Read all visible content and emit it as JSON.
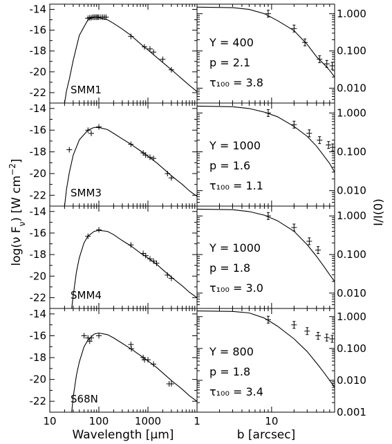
{
  "figure": {
    "ylabel_left": "log(ν F_ν) [W cm⁻²]",
    "ylabel_right": "I/I(0)",
    "xlabel_left": "Wavelength [μm]",
    "xlabel_right": "b [arcsec]"
  },
  "chart_data": [
    {
      "type": "scatter",
      "source": "SMM1",
      "name": "SMM1",
      "xlabel": "Wavelength [μm]",
      "ylabel": "log(ν F_ν) [W cm⁻²]",
      "x_scale": "log",
      "xlim": [
        10,
        10000
      ],
      "ylim": [
        -23,
        -13.5
      ],
      "x_tick_labels": [
        "10",
        "100",
        "1000"
      ],
      "y_tick_labels": [
        "-14",
        "-16",
        "-18",
        "-20",
        "-22"
      ],
      "points": [
        [
          60,
          -14.85
        ],
        [
          65,
          -14.8
        ],
        [
          70,
          -14.8
        ],
        [
          75,
          -14.75
        ],
        [
          80,
          -14.75
        ],
        [
          85,
          -14.75
        ],
        [
          90,
          -14.75
        ],
        [
          95,
          -14.75
        ],
        [
          100,
          -14.75
        ],
        [
          110,
          -14.75
        ],
        [
          120,
          -14.75
        ],
        [
          130,
          -14.75
        ],
        [
          140,
          -14.75
        ],
        [
          450,
          -16.6
        ],
        [
          850,
          -17.6
        ],
        [
          1100,
          -17.8
        ],
        [
          1300,
          -18.1
        ],
        [
          2000,
          -18.8
        ],
        [
          3000,
          -19.8
        ]
      ],
      "model": [
        [
          20,
          -23
        ],
        [
          22,
          -21.8
        ],
        [
          25,
          -20.7
        ],
        [
          30,
          -18.9
        ],
        [
          40,
          -16.5
        ],
        [
          60,
          -15.0
        ],
        [
          80,
          -14.75
        ],
        [
          100,
          -14.8
        ],
        [
          150,
          -15.0
        ],
        [
          200,
          -15.35
        ],
        [
          300,
          -15.9
        ],
        [
          450,
          -16.5
        ],
        [
          700,
          -17.3
        ],
        [
          1000,
          -17.9
        ],
        [
          1500,
          -18.6
        ],
        [
          2000,
          -19.1
        ],
        [
          3000,
          -19.8
        ],
        [
          5000,
          -20.7
        ],
        [
          7000,
          -21.3
        ],
        [
          10000,
          -21.9
        ]
      ]
    },
    {
      "type": "scatter",
      "source": "SMM3",
      "name": "SMM3",
      "xlabel": "Wavelength [μm]",
      "ylabel": "log(ν F_ν) [W cm⁻²]",
      "x_scale": "log",
      "xlim": [
        10,
        10000
      ],
      "ylim": [
        -23,
        -13.5
      ],
      "x_tick_labels": [
        "10",
        "100",
        "1000"
      ],
      "y_tick_labels": [
        "-14",
        "-16",
        "-18",
        "-20",
        "-22"
      ],
      "points": [
        [
          25,
          -17.8
        ],
        [
          60,
          -16.0
        ],
        [
          70,
          -16.3
        ],
        [
          100,
          -15.7
        ],
        [
          450,
          -17.3
        ],
        [
          800,
          -18.1
        ],
        [
          900,
          -18.3
        ],
        [
          1100,
          -18.5
        ],
        [
          1300,
          -18.6
        ],
        [
          2500,
          -20.0
        ],
        [
          3000,
          -20.4
        ]
      ],
      "model": [
        [
          20,
          -23
        ],
        [
          22,
          -21.4
        ],
        [
          25,
          -19.9
        ],
        [
          30,
          -18.3
        ],
        [
          40,
          -16.9
        ],
        [
          60,
          -16.0
        ],
        [
          80,
          -15.75
        ],
        [
          100,
          -15.75
        ],
        [
          150,
          -15.95
        ],
        [
          200,
          -16.3
        ],
        [
          300,
          -16.8
        ],
        [
          450,
          -17.3
        ],
        [
          700,
          -17.9
        ],
        [
          1000,
          -18.4
        ],
        [
          1500,
          -19.0
        ],
        [
          2000,
          -19.5
        ],
        [
          3000,
          -20.2
        ],
        [
          5000,
          -21.0
        ],
        [
          7000,
          -21.6
        ],
        [
          10000,
          -22.1
        ]
      ]
    },
    {
      "type": "scatter",
      "source": "SMM4",
      "name": "SMM4",
      "xlabel": "Wavelength [μm]",
      "ylabel": "log(ν F_ν) [W cm⁻²]",
      "x_scale": "log",
      "xlim": [
        10,
        10000
      ],
      "ylim": [
        -23,
        -13.5
      ],
      "x_tick_labels": [
        "10",
        "100",
        "1000"
      ],
      "y_tick_labels": [
        "-14",
        "-16",
        "-18",
        "-20",
        "-22"
      ],
      "points": [
        [
          60,
          -16.3
        ],
        [
          100,
          -15.7
        ],
        [
          450,
          -17.1
        ],
        [
          800,
          -17.9
        ],
        [
          900,
          -18.1
        ],
        [
          1100,
          -18.4
        ],
        [
          1300,
          -18.6
        ],
        [
          1500,
          -18.8
        ],
        [
          2500,
          -19.9
        ],
        [
          3000,
          -20.2
        ]
      ],
      "model": [
        [
          28,
          -23
        ],
        [
          30,
          -21.8
        ],
        [
          35,
          -19.6
        ],
        [
          40,
          -18.3
        ],
        [
          50,
          -16.9
        ],
        [
          60,
          -16.3
        ],
        [
          80,
          -15.85
        ],
        [
          100,
          -15.75
        ],
        [
          150,
          -15.85
        ],
        [
          200,
          -16.15
        ],
        [
          300,
          -16.7
        ],
        [
          450,
          -17.2
        ],
        [
          700,
          -17.85
        ],
        [
          1000,
          -18.3
        ],
        [
          1500,
          -18.9
        ],
        [
          2000,
          -19.4
        ],
        [
          3000,
          -20.1
        ],
        [
          5000,
          -20.9
        ],
        [
          7000,
          -21.5
        ],
        [
          10000,
          -22.0
        ]
      ]
    },
    {
      "type": "scatter",
      "source": "S68N",
      "name": "S68N",
      "xlabel": "Wavelength [μm]",
      "ylabel": "log(ν F_ν) [W cm⁻²]",
      "x_scale": "log",
      "xlim": [
        10,
        10000
      ],
      "ylim": [
        -23,
        -13.5
      ],
      "x_tick_labels": [
        "10",
        "100",
        "1000"
      ],
      "y_tick_labels": [
        "-14",
        "-16",
        "-18",
        "-20",
        "-22"
      ],
      "points": [
        [
          50,
          -16.0
        ],
        [
          60,
          -16.2
        ],
        [
          65,
          -16.5
        ],
        [
          70,
          -16.2
        ],
        [
          100,
          -16.0
        ],
        [
          450,
          -16.8
        ],
        [
          460,
          -17.2
        ],
        [
          800,
          -18.0
        ],
        [
          850,
          -18.2
        ],
        [
          1000,
          -18.2
        ],
        [
          1300,
          -18.6
        ],
        [
          2700,
          -20.4
        ],
        [
          3000,
          -20.4
        ]
      ],
      "model": [
        [
          28,
          -23
        ],
        [
          30,
          -21.6
        ],
        [
          35,
          -19.6
        ],
        [
          40,
          -18.4
        ],
        [
          50,
          -17.0
        ],
        [
          60,
          -16.4
        ],
        [
          80,
          -15.85
        ],
        [
          100,
          -15.75
        ],
        [
          150,
          -15.9
        ],
        [
          200,
          -16.2
        ],
        [
          300,
          -16.7
        ],
        [
          450,
          -17.2
        ],
        [
          700,
          -17.8
        ],
        [
          1000,
          -18.3
        ],
        [
          1500,
          -18.9
        ],
        [
          2000,
          -19.4
        ],
        [
          3000,
          -20.1
        ],
        [
          5000,
          -20.9
        ],
        [
          7000,
          -21.5
        ],
        [
          10000,
          -22.0
        ]
      ]
    },
    {
      "type": "line",
      "source": "SMM1",
      "xlabel": "b [arcsec]",
      "ylabel": "I/I(0)",
      "x_scale": "log",
      "y_scale": "log",
      "xlim": [
        1,
        70
      ],
      "ylim": [
        0.004,
        1.8
      ],
      "x_tick_labels": [
        "1",
        "10"
      ],
      "y_tick_labels": [
        "1.000",
        "0.100",
        "0.010"
      ],
      "annotations": [
        "Y = 400",
        "p = 2.1",
        "τ₁₀₀ = 3.8"
      ],
      "points": [
        [
          9,
          1.0
        ],
        [
          20,
          0.4
        ],
        [
          28,
          0.17
        ],
        [
          44,
          0.06
        ],
        [
          55,
          0.045
        ],
        [
          65,
          0.04
        ]
      ],
      "model": [
        [
          1,
          1.5
        ],
        [
          3,
          1.45
        ],
        [
          5,
          1.3
        ],
        [
          8,
          1.0
        ],
        [
          12,
          0.65
        ],
        [
          20,
          0.35
        ],
        [
          30,
          0.15
        ],
        [
          40,
          0.07
        ],
        [
          50,
          0.045
        ],
        [
          60,
          0.03
        ],
        [
          70,
          0.02
        ]
      ]
    },
    {
      "type": "line",
      "source": "SMM3",
      "xlabel": "b [arcsec]",
      "ylabel": "I/I(0)",
      "x_scale": "log",
      "y_scale": "log",
      "xlim": [
        1,
        70
      ],
      "ylim": [
        0.004,
        1.8
      ],
      "x_tick_labels": [
        "1",
        "10"
      ],
      "y_tick_labels": [
        "1.000",
        "0.100",
        "0.010"
      ],
      "annotations": [
        "Y = 1000",
        "p = 1.6",
        "τ₁₀₀ = 1.1"
      ],
      "points": [
        [
          9,
          1.0
        ],
        [
          20,
          0.5
        ],
        [
          32,
          0.3
        ],
        [
          44,
          0.2
        ],
        [
          58,
          0.15
        ],
        [
          66,
          0.13
        ]
      ],
      "model": [
        [
          1,
          1.5
        ],
        [
          3,
          1.45
        ],
        [
          5,
          1.3
        ],
        [
          8,
          1.05
        ],
        [
          12,
          0.8
        ],
        [
          20,
          0.45
        ],
        [
          30,
          0.25
        ],
        [
          40,
          0.14
        ],
        [
          50,
          0.08
        ],
        [
          60,
          0.05
        ],
        [
          70,
          0.03
        ]
      ]
    },
    {
      "type": "line",
      "source": "SMM4",
      "xlabel": "b [arcsec]",
      "ylabel": "I/I(0)",
      "x_scale": "log",
      "y_scale": "log",
      "xlim": [
        1,
        70
      ],
      "ylim": [
        0.004,
        1.8
      ],
      "x_tick_labels": [
        "1",
        "10"
      ],
      "y_tick_labels": [
        "1.000",
        "0.100",
        "0.010"
      ],
      "annotations": [
        "Y = 1000",
        "p = 1.8",
        "τ₁₀₀ = 3.0"
      ],
      "points": [
        [
          9,
          1.0
        ],
        [
          20,
          0.5
        ],
        [
          32,
          0.22
        ],
        [
          42,
          0.13
        ]
      ],
      "model": [
        [
          1,
          1.5
        ],
        [
          3,
          1.45
        ],
        [
          5,
          1.3
        ],
        [
          8,
          1.05
        ],
        [
          12,
          0.75
        ],
        [
          20,
          0.4
        ],
        [
          30,
          0.18
        ],
        [
          40,
          0.09
        ],
        [
          50,
          0.05
        ],
        [
          60,
          0.03
        ],
        [
          70,
          0.02
        ]
      ]
    },
    {
      "type": "line",
      "source": "S68N",
      "xlabel": "b [arcsec]",
      "ylabel": "I/I(0)",
      "x_scale": "log",
      "y_scale": "log",
      "xlim": [
        1,
        70
      ],
      "ylim": [
        0.001,
        1.8
      ],
      "x_tick_labels": [
        "1",
        "10"
      ],
      "y_tick_labels": [
        "1.000",
        "0.100",
        "0.010",
        "0.001"
      ],
      "annotations": [
        "Y = 800",
        "p = 1.8",
        "τ₁₀₀ = 3.4"
      ],
      "points": [
        [
          9,
          0.8
        ],
        [
          20,
          0.55
        ],
        [
          30,
          0.35
        ],
        [
          42,
          0.25
        ],
        [
          55,
          0.22
        ],
        [
          65,
          0.2
        ]
      ],
      "model": [
        [
          1,
          1.5
        ],
        [
          3,
          1.45
        ],
        [
          5,
          1.3
        ],
        [
          8,
          0.9
        ],
        [
          12,
          0.5
        ],
        [
          20,
          0.2
        ],
        [
          30,
          0.08
        ],
        [
          40,
          0.035
        ],
        [
          50,
          0.018
        ],
        [
          60,
          0.01
        ],
        [
          70,
          0.006
        ]
      ]
    }
  ]
}
